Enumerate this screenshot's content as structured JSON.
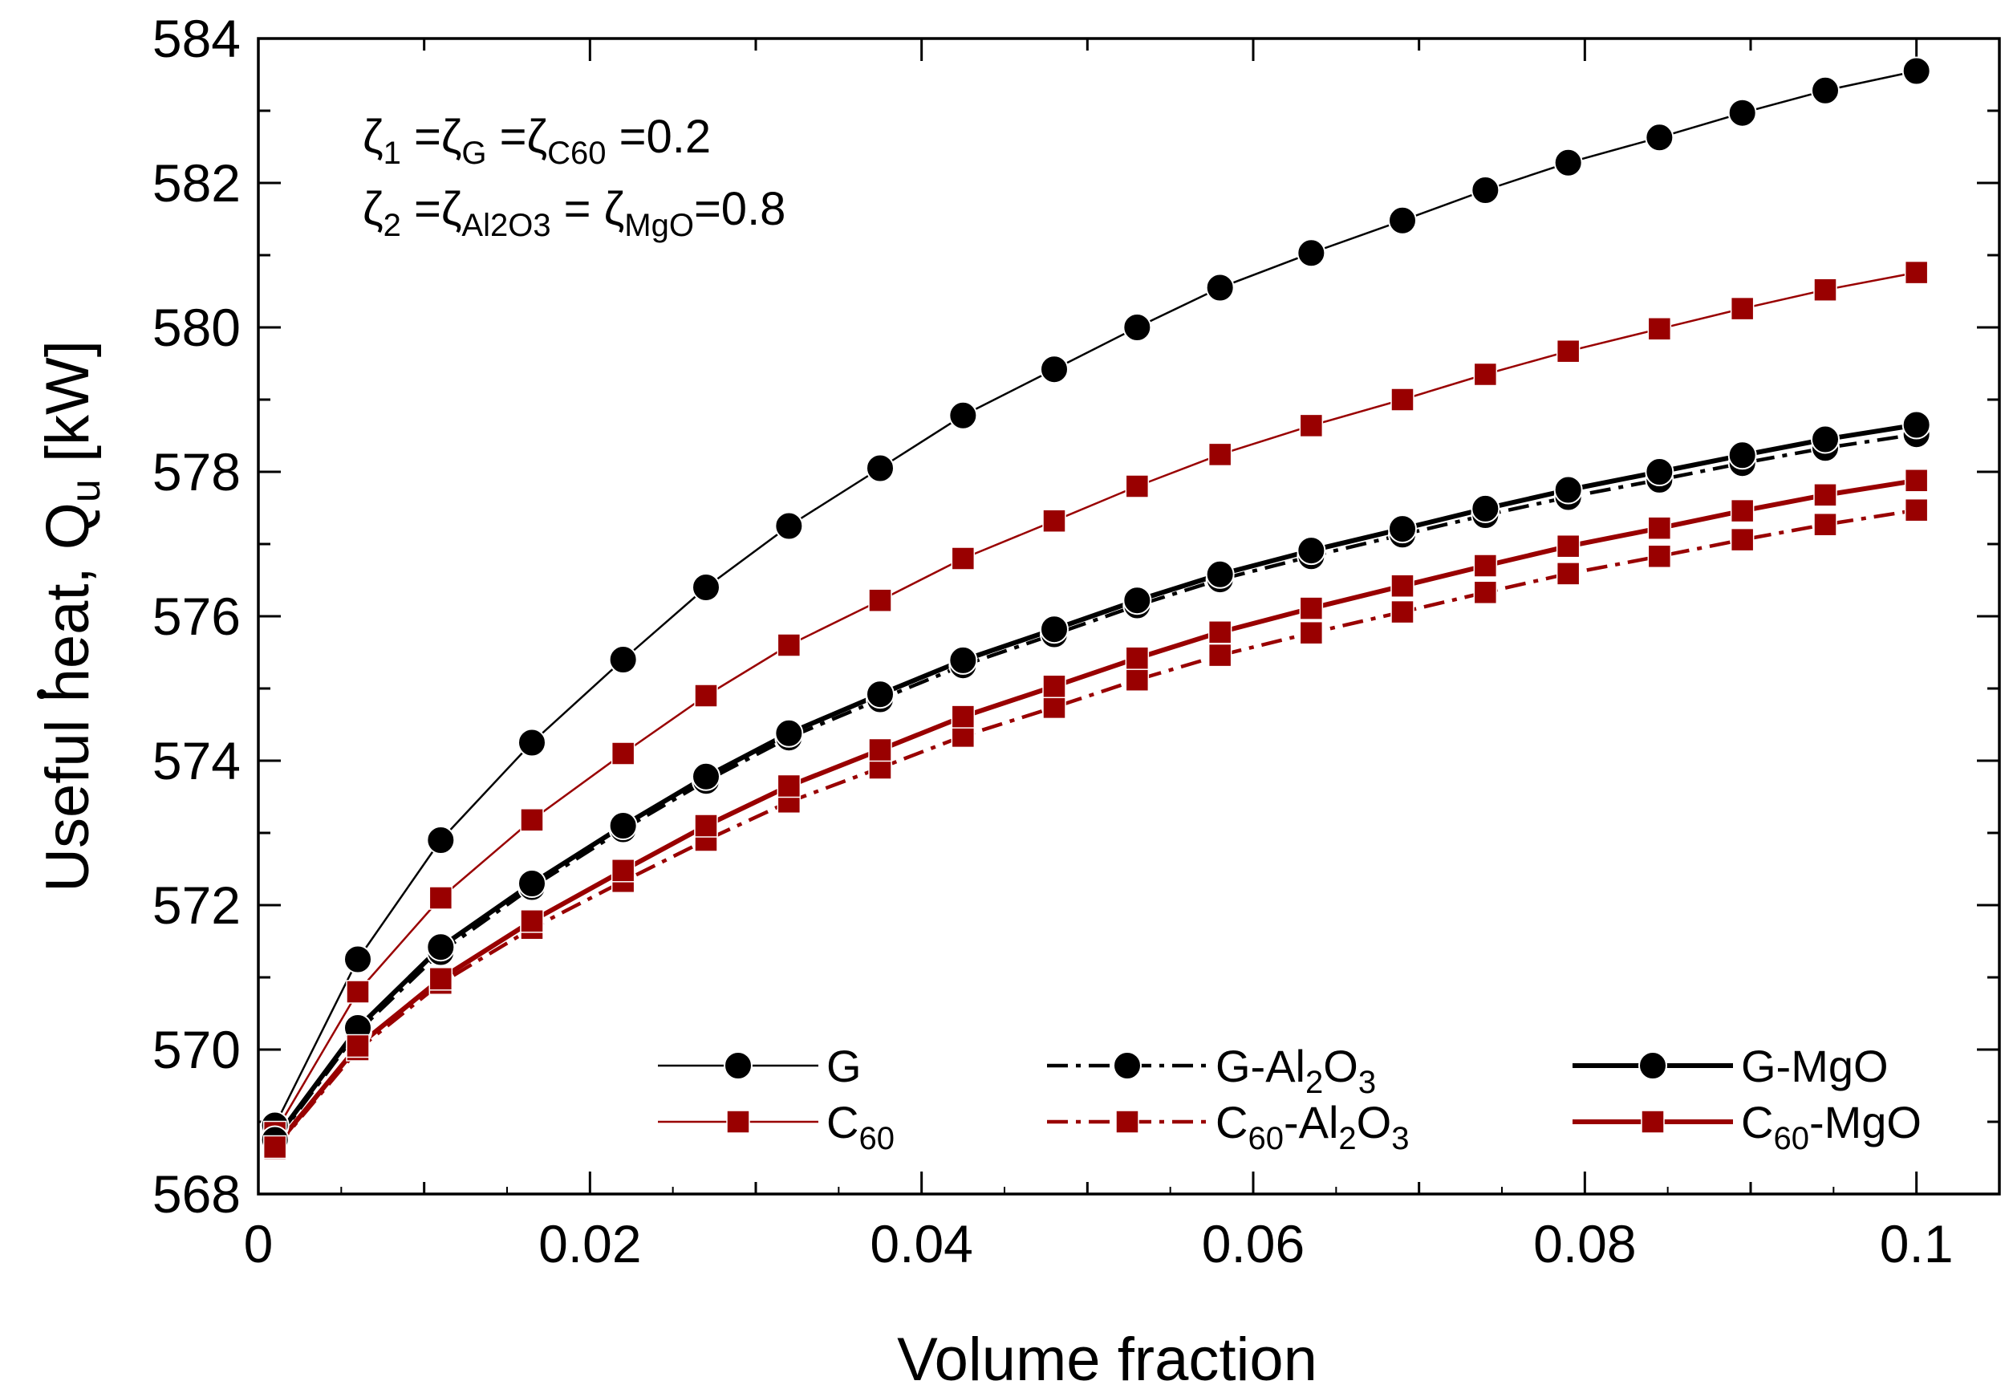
{
  "chart_data": {
    "type": "line",
    "title": "",
    "xlabel": "Volume fraction",
    "ylabel_prefix": "Useful heat,  ",
    "ylabel_symbol": "Q",
    "ylabel_subscript": "u",
    "ylabel_unit": " [kW]",
    "xlim": [
      0,
      0.105
    ],
    "ylim": [
      568,
      584
    ],
    "x_ticks": [
      0,
      0.02,
      0.04,
      0.06,
      0.08,
      0.1
    ],
    "x_tick_labels": [
      "0",
      "0.02",
      "0.04",
      "0.06",
      "0.08",
      "0.1"
    ],
    "y_ticks": [
      568,
      570,
      572,
      574,
      576,
      578,
      580,
      582,
      584
    ],
    "y_tick_labels": [
      "568",
      "570",
      "572",
      "574",
      "576",
      "578",
      "580",
      "582",
      "584"
    ],
    "x": [
      0.001,
      0.006,
      0.011,
      0.0165,
      0.022,
      0.027,
      0.032,
      0.0375,
      0.0425,
      0.048,
      0.053,
      0.058,
      0.0635,
      0.069,
      0.074,
      0.079,
      0.0845,
      0.0895,
      0.0945,
      0.1
    ],
    "series": [
      {
        "name": "G",
        "color": "#000000",
        "marker": "circle",
        "line": "solid-thin",
        "values": [
          568.95,
          571.25,
          572.9,
          574.25,
          575.4,
          576.4,
          577.25,
          578.05,
          578.78,
          579.42,
          580.0,
          580.55,
          581.03,
          581.48,
          581.9,
          582.28,
          582.63,
          582.97,
          583.28,
          583.55
        ]
      },
      {
        "name": "C60",
        "color": "#990000",
        "marker": "square",
        "line": "solid-thin",
        "values": [
          568.85,
          570.8,
          572.1,
          573.18,
          574.1,
          574.9,
          575.6,
          576.22,
          576.8,
          577.32,
          577.8,
          578.24,
          578.64,
          579.0,
          579.35,
          579.67,
          579.98,
          580.26,
          580.52,
          580.76
        ]
      },
      {
        "name": "G-Al2O3",
        "color": "#000000",
        "marker": "circle",
        "line": "dashdot",
        "values": [
          568.72,
          570.25,
          571.35,
          572.25,
          573.05,
          573.72,
          574.32,
          574.85,
          575.32,
          575.75,
          576.15,
          576.51,
          576.83,
          577.13,
          577.4,
          577.65,
          577.89,
          578.12,
          578.33,
          578.52
        ]
      },
      {
        "name": "C60-Al2O3",
        "color": "#990000",
        "marker": "square",
        "line": "dashdot",
        "values": [
          568.63,
          570.0,
          570.92,
          571.68,
          572.33,
          572.9,
          573.43,
          573.9,
          574.34,
          574.74,
          575.12,
          575.46,
          575.77,
          576.06,
          576.33,
          576.59,
          576.83,
          577.06,
          577.27,
          577.47
        ]
      },
      {
        "name": "G-MgO",
        "color": "#000000",
        "marker": "circle",
        "line": "solid-thick",
        "values": [
          568.75,
          570.3,
          571.42,
          572.3,
          573.1,
          573.78,
          574.38,
          574.92,
          575.39,
          575.82,
          576.22,
          576.58,
          576.91,
          577.21,
          577.49,
          577.75,
          578.0,
          578.23,
          578.45,
          578.65
        ]
      },
      {
        "name": "C60-MgO",
        "color": "#990000",
        "marker": "square",
        "line": "solid-thick",
        "values": [
          568.65,
          570.05,
          570.98,
          571.78,
          572.48,
          573.1,
          573.65,
          574.15,
          574.61,
          575.03,
          575.42,
          575.78,
          576.11,
          576.42,
          576.7,
          576.97,
          577.22,
          577.46,
          577.68,
          577.88
        ]
      }
    ],
    "legend": {
      "placement": "bottom",
      "entries": [
        {
          "label": "G",
          "main": "G",
          "subs": []
        },
        {
          "label": "C60",
          "main": "C",
          "subs": [
            "60"
          ]
        },
        {
          "label": "G-Al2O3",
          "main": "G-Al",
          "subs": [
            "2",
            "O",
            "3"
          ]
        },
        {
          "label": "C60-Al2O3",
          "main": "C",
          "subs": [
            "60",
            "-Al",
            "2",
            "O",
            "3"
          ]
        },
        {
          "label": "G-MgO",
          "main": "G-MgO",
          "subs": []
        },
        {
          "label": "C60-MgO",
          "main": "C",
          "subs": [
            "60",
            "-MgO"
          ]
        }
      ]
    },
    "annotations": [
      {
        "parts": [
          [
            "ζ",
            "n"
          ],
          [
            "1",
            "s"
          ],
          [
            " =ζ",
            "n"
          ],
          [
            "G",
            "s"
          ],
          [
            " =ζ",
            "n"
          ],
          [
            "C60",
            "s"
          ],
          [
            " =0.2",
            "n"
          ]
        ]
      },
      {
        "parts": [
          [
            "ζ",
            "n"
          ],
          [
            "2",
            "s"
          ],
          [
            " =ζ",
            "n"
          ],
          [
            "Al2O3",
            "s"
          ],
          [
            " = ζ",
            "n"
          ],
          [
            "MgO",
            "s"
          ],
          [
            "=0.8",
            "n"
          ]
        ]
      }
    ]
  }
}
